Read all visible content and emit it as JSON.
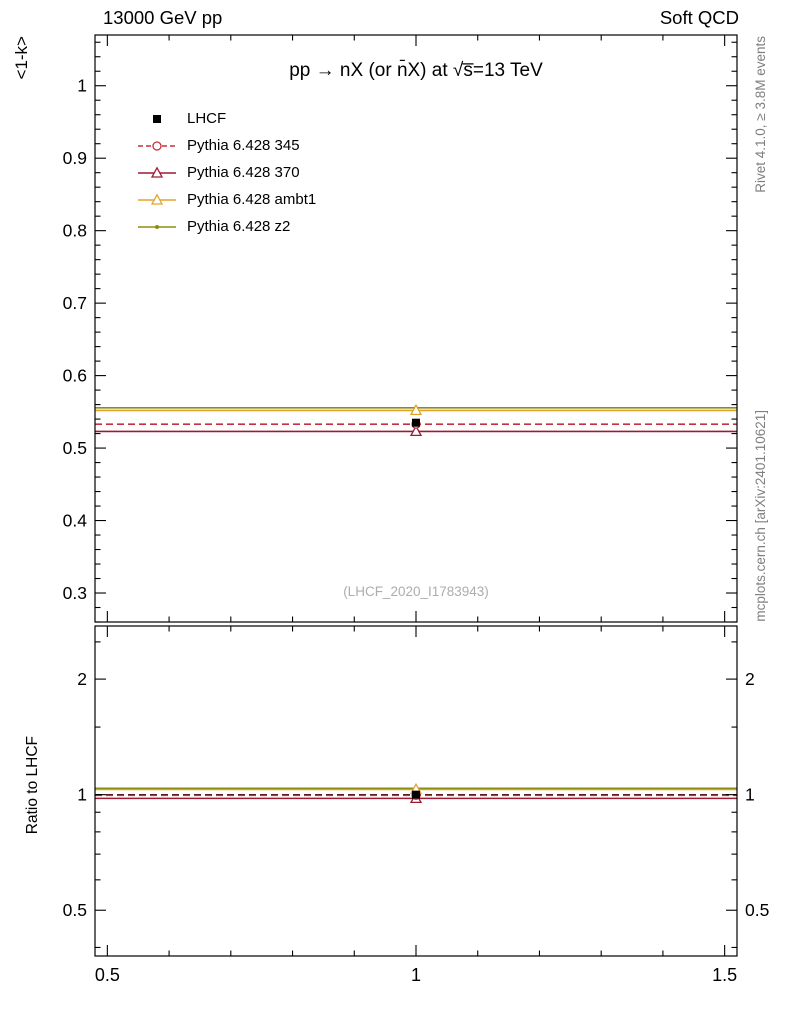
{
  "header": {
    "left": "13000 GeV pp",
    "right": "Soft QCD"
  },
  "plot": {
    "title": "pp → nX (or n̄X) at √s̅=13 TeV",
    "watermark": "(LHCF_2020_I1783943)",
    "ylabel_main": "<1-k>",
    "ylabel_ratio": "Ratio to LHCF",
    "right_label_top": "Rivet 4.1.0, ≥ 3.8M events",
    "right_label_bottom": "mcplots.cern.ch [arXiv:2401.10621]"
  },
  "legend": {
    "entries": [
      {
        "label": "LHCF",
        "color": "#000000",
        "marker": "square-filled",
        "line": "none"
      },
      {
        "label": "Pythia 6.428 345",
        "color": "#c5303e",
        "marker": "circle-open",
        "line": "dashed"
      },
      {
        "label": "Pythia 6.428 370",
        "color": "#9c1b33",
        "marker": "triangle-open",
        "line": "solid"
      },
      {
        "label": "Pythia 6.428 ambt1",
        "color": "#e2a32b",
        "marker": "triangle-open",
        "line": "solid"
      },
      {
        "label": "Pythia 6.428 z2",
        "color": "#8d8d10",
        "marker": "dot",
        "line": "solid"
      }
    ]
  },
  "chart_data": [
    {
      "type": "line",
      "panel": "main",
      "title": "pp → nX (or n̄X) at √s̅=13 TeV",
      "xlabel": "",
      "ylabel": "<1-k>",
      "xlim": [
        0.48,
        1.52
      ],
      "ylim": [
        0.26,
        1.07
      ],
      "yticks": [
        0.3,
        0.4,
        0.5,
        0.6,
        0.7,
        0.8,
        0.9,
        1.0
      ],
      "ytick_labels": [
        "0.3",
        "0.4",
        "0.5",
        "0.6",
        "0.7",
        "0.8",
        "0.9",
        "1"
      ],
      "yminor_step": 0.02,
      "xticks": [
        0.5,
        1.0,
        1.5
      ],
      "xminor_step": 0.1,
      "grid": false,
      "legend_position": "top-left",
      "series": [
        {
          "name": "LHCF",
          "color": "#000000",
          "marker": "square-filled",
          "line": "none",
          "x": [
            1.0
          ],
          "y": [
            0.535
          ]
        },
        {
          "name": "Pythia 6.428 345",
          "color": "#c5303e",
          "marker": "circle-open",
          "line": "dashed",
          "x": [
            1.0
          ],
          "y": [
            0.533
          ]
        },
        {
          "name": "Pythia 6.428 370",
          "color": "#9c1b33",
          "marker": "triangle-open",
          "line": "solid",
          "x": [
            1.0
          ],
          "y": [
            0.523
          ]
        },
        {
          "name": "Pythia 6.428 ambt1",
          "color": "#e2a32b",
          "marker": "triangle-open",
          "line": "solid",
          "x": [
            1.0
          ],
          "y": [
            0.552
          ]
        },
        {
          "name": "Pythia 6.428 z2",
          "color": "#8d8d10",
          "marker": "dot",
          "line": "solid",
          "x": [
            1.0
          ],
          "y": [
            0.5555
          ]
        }
      ]
    },
    {
      "type": "line",
      "panel": "ratio",
      "ylabel": "Ratio to LHCF",
      "yscale": "log",
      "xlim": [
        0.48,
        1.52
      ],
      "ylim": [
        0.38,
        2.75
      ],
      "yticks": [
        0.5,
        1,
        2
      ],
      "ytick_labels": [
        "0.5",
        "1",
        "2"
      ],
      "yminors": [
        0.4,
        0.6,
        0.7,
        0.8,
        0.9,
        1.5,
        2.5
      ],
      "xticks": [
        0.5,
        1.0,
        1.5
      ],
      "xtick_labels": [
        "0.5",
        "1",
        "1.5"
      ],
      "xminor_step": 0.1,
      "grid": false,
      "series": [
        {
          "name": "LHCF",
          "color": "#000000",
          "marker": "square-filled",
          "line": "dashed",
          "x": [
            1.0
          ],
          "y": [
            1.0
          ]
        },
        {
          "name": "Pythia 6.428 345",
          "color": "#c5303e",
          "marker": "circle-open",
          "line": "dashed",
          "x": [
            1.0
          ],
          "y": [
            0.996
          ]
        },
        {
          "name": "Pythia 6.428 370",
          "color": "#9c1b33",
          "marker": "triangle-open",
          "line": "solid",
          "x": [
            1.0
          ],
          "y": [
            0.978
          ]
        },
        {
          "name": "Pythia 6.428 ambt1",
          "color": "#e2a32b",
          "marker": "triangle-open",
          "line": "solid",
          "x": [
            1.0
          ],
          "y": [
            1.032
          ]
        },
        {
          "name": "Pythia 6.428 z2",
          "color": "#8d8d10",
          "marker": "dot",
          "line": "solid",
          "x": [
            1.0
          ],
          "y": [
            1.039
          ]
        }
      ]
    }
  ]
}
